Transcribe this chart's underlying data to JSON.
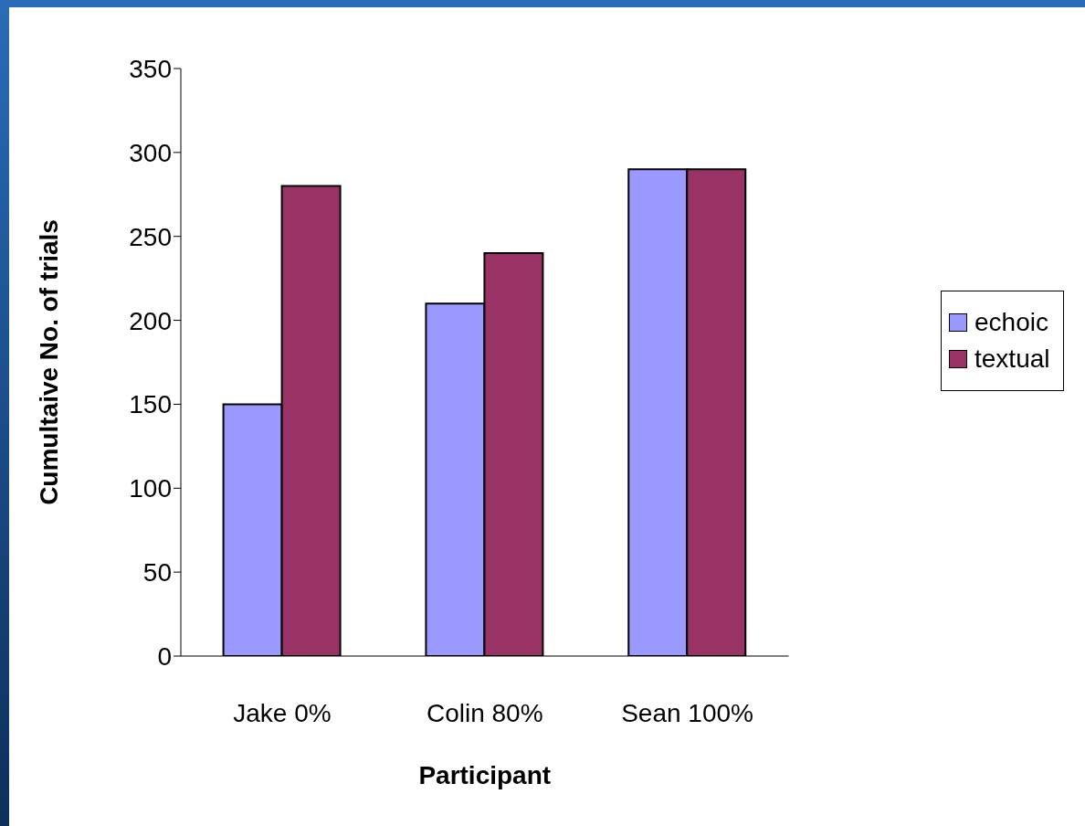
{
  "chart_data": {
    "type": "bar",
    "xlabel": "Participant",
    "ylabel": "Cumultaive No. of trials",
    "categories": [
      "Jake 0%",
      "Colin 80%",
      "Sean 100%"
    ],
    "series": [
      {
        "name": "echoic",
        "color": "#9999ff",
        "values": [
          150,
          210,
          290
        ]
      },
      {
        "name": "textual",
        "color": "#993366",
        "values": [
          280,
          240,
          290
        ]
      }
    ],
    "ylim": [
      0,
      350
    ],
    "yticks": [
      0,
      50,
      100,
      150,
      200,
      250,
      300,
      350
    ],
    "legend": "right"
  }
}
